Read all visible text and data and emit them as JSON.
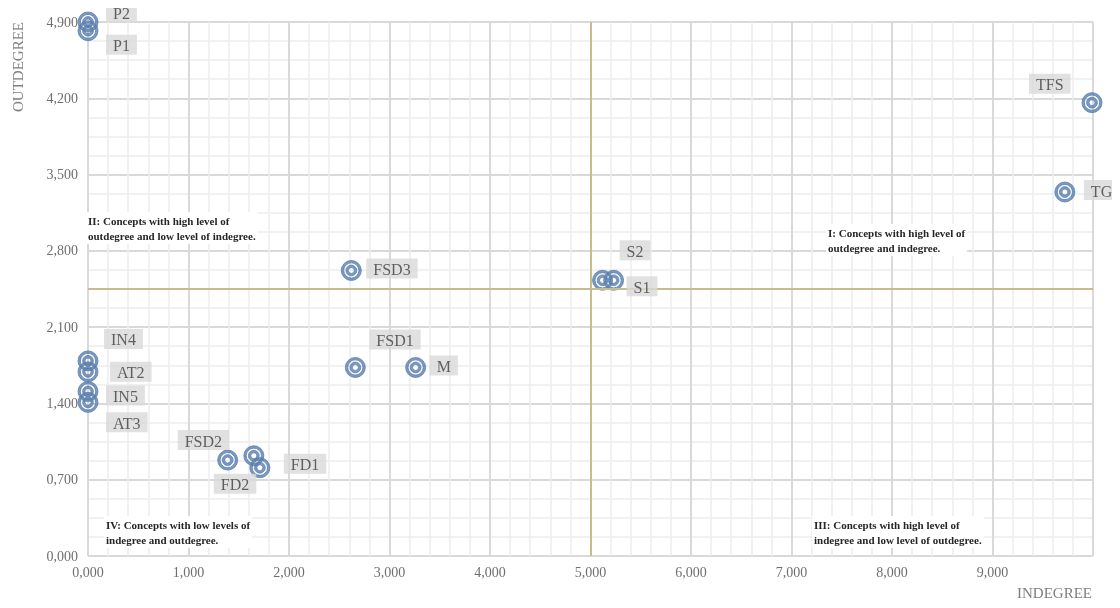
{
  "chart_data": {
    "type": "scatter",
    "xlabel": "INDEGREE",
    "ylabel": "OUTDEGREE",
    "x": [
      0,
      0,
      9.99,
      9.72,
      5.12,
      5.23,
      2.62,
      2.66,
      3.26,
      1.39,
      1.65,
      1.71,
      0,
      0,
      0,
      0
    ],
    "series": [
      {
        "color": "#5b7fae",
        "values": [
          4.82,
          4.9,
          4.16,
          3.34,
          2.53,
          2.53,
          2.62,
          1.73,
          1.73,
          0.88,
          0.92,
          0.81,
          1.79,
          1.69,
          1.51,
          1.41
        ]
      }
    ],
    "xlim": [
      0,
      10
    ],
    "xticks": [
      {
        "value": 0,
        "label": "0,000"
      },
      {
        "value": 1,
        "label": "1,000"
      },
      {
        "value": 2,
        "label": "2,000"
      },
      {
        "value": 3,
        "label": "3,000"
      },
      {
        "value": 4,
        "label": "4,000"
      },
      {
        "value": 5,
        "label": "5,000"
      },
      {
        "value": 6,
        "label": "6,000"
      },
      {
        "value": 7,
        "label": "7,000"
      },
      {
        "value": 8,
        "label": "8,000"
      },
      {
        "value": 9,
        "label": "9,000"
      },
      {
        "value": 10,
        "label": null
      }
    ],
    "ylim": [
      0,
      4.9
    ],
    "yticks": [
      {
        "value": 0,
        "label": "0,000"
      },
      {
        "value": 0.7,
        "label": "0,700"
      },
      {
        "value": 1.4,
        "label": "1,400"
      },
      {
        "value": 2.1,
        "label": "2,100"
      },
      {
        "value": 2.8,
        "label": "2,800"
      },
      {
        "value": 3.5,
        "label": "3,500"
      },
      {
        "value": 4.2,
        "label": "4,200"
      },
      {
        "value": 4.9,
        "label": "4,900"
      }
    ],
    "ref_lines": [
      {
        "axis": "x",
        "value": 5,
        "label": null,
        "color": "#c8bb8e"
      },
      {
        "axis": "y",
        "value": 2.45,
        "label": null,
        "color": "#c8bb8e"
      }
    ],
    "grid": true,
    "marker": "circle",
    "annotations": [
      {
        "text": "P1",
        "x": 0,
        "y": 4.82
      },
      {
        "text": "P2",
        "x": 0,
        "y": 4.9
      },
      {
        "text": "TFS",
        "x": 9.99,
        "y": 4.16
      },
      {
        "text": "TG",
        "x": 9.72,
        "y": 3.34
      },
      {
        "text": "S1",
        "x": 5.12,
        "y": 2.53
      },
      {
        "text": "S2",
        "x": 5.23,
        "y": 2.53
      },
      {
        "text": "FSD3",
        "x": 2.62,
        "y": 2.62
      },
      {
        "text": "FSD1",
        "x": 2.66,
        "y": 1.73
      },
      {
        "text": "M",
        "x": 3.26,
        "y": 1.73
      },
      {
        "text": "FSD2",
        "x": 1.39,
        "y": 0.88
      },
      {
        "text": "FD1",
        "x": 1.65,
        "y": 0.92
      },
      {
        "text": "FD2",
        "x": 1.71,
        "y": 0.81
      },
      {
        "text": "IN4",
        "x": 0,
        "y": 1.79
      },
      {
        "text": "AT2",
        "x": 0,
        "y": 1.69
      },
      {
        "text": "IN5",
        "x": 0,
        "y": 1.51
      },
      {
        "text": "AT3",
        "x": 0,
        "y": 1.41
      },
      "II: Concepts with high level of\noutdegree and low level of indegree.",
      "I: Concepts with high level of\noutdegree and indegree.",
      "IV: Concepts with low levels of\nindegree and outdegree.",
      "III: Concepts with high level of\nindegree and low level of outdegree."
    ]
  }
}
